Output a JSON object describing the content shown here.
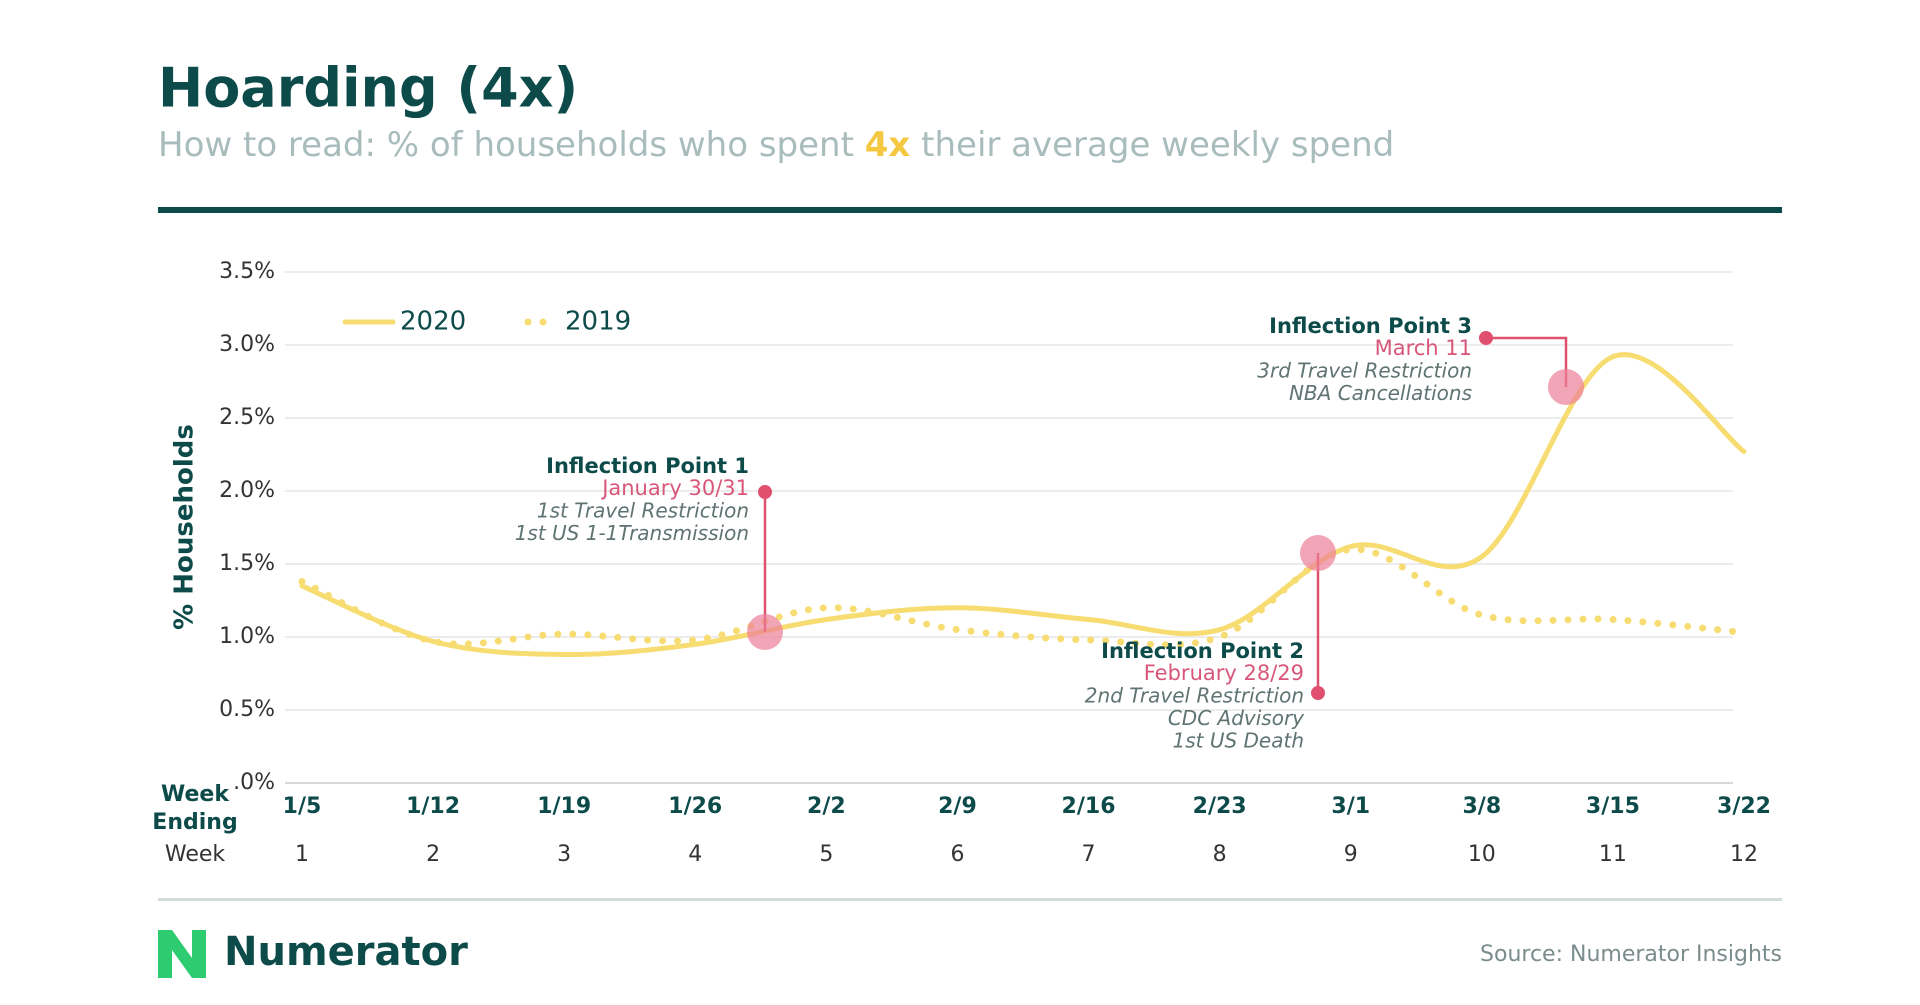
{
  "chart_data": {
    "type": "line",
    "title": "Hoarding (4x)",
    "subtitle": [
      "How to read: % of households who spent ",
      "4x",
      " their average weekly spend"
    ],
    "y_label": "% Households",
    "x_label": "Week Ending",
    "week_label": "Week",
    "categories": [
      "1/5",
      "1/12",
      "1/19",
      "1/26",
      "2/2",
      "2/9",
      "2/16",
      "2/23",
      "3/1",
      "3/8",
      "3/15",
      "3/22"
    ],
    "week_numbers": [
      1,
      2,
      3,
      4,
      5,
      6,
      7,
      8,
      9,
      10,
      11,
      12
    ],
    "series": [
      {
        "name": "2020",
        "color": "#f7dc72",
        "style": "solid",
        "values": [
          1.35,
          0.97,
          0.88,
          0.95,
          1.12,
          1.2,
          1.12,
          1.05,
          1.62,
          1.55,
          2.92,
          2.27
        ]
      },
      {
        "name": "2019",
        "color": "#f7dc72",
        "style": "dotted",
        "values": [
          1.38,
          0.97,
          1.02,
          0.98,
          1.2,
          1.05,
          0.98,
          1.0,
          1.6,
          1.15,
          1.12,
          1.03
        ]
      }
    ],
    "ylim": [
      0,
      3.5
    ],
    "yticks": [
      {
        "value": 0,
        "label": ".0%"
      },
      {
        "value": 0.5,
        "label": "0.5%"
      },
      {
        "value": 1,
        "label": "1.0%"
      },
      {
        "value": 1.5,
        "label": "1.5%"
      },
      {
        "value": 2,
        "label": "2.0%"
      },
      {
        "value": 2.5,
        "label": "2.5%"
      },
      {
        "value": 3,
        "label": "3.0%"
      },
      {
        "value": 3.5,
        "label": "3.5%"
      }
    ],
    "grid": true,
    "annotations": [
      {
        "title": "Inflection Point 1",
        "date": "January 30/31",
        "lines": [
          "1st Travel Restriction",
          "1st US 1-1Transmission"
        ]
      },
      {
        "title": "Inflection Point 2",
        "date": "February 28/29",
        "lines": [
          "2nd Travel Restriction",
          "CDC Advisory",
          "1st US Death"
        ]
      },
      {
        "title": "Inflection Point 3",
        "date": "March 11",
        "lines": [
          "3rd Travel Restriction",
          "NBA Cancellations"
        ]
      }
    ],
    "brand": "Numerator",
    "source": "Source: Numerator Insights"
  }
}
